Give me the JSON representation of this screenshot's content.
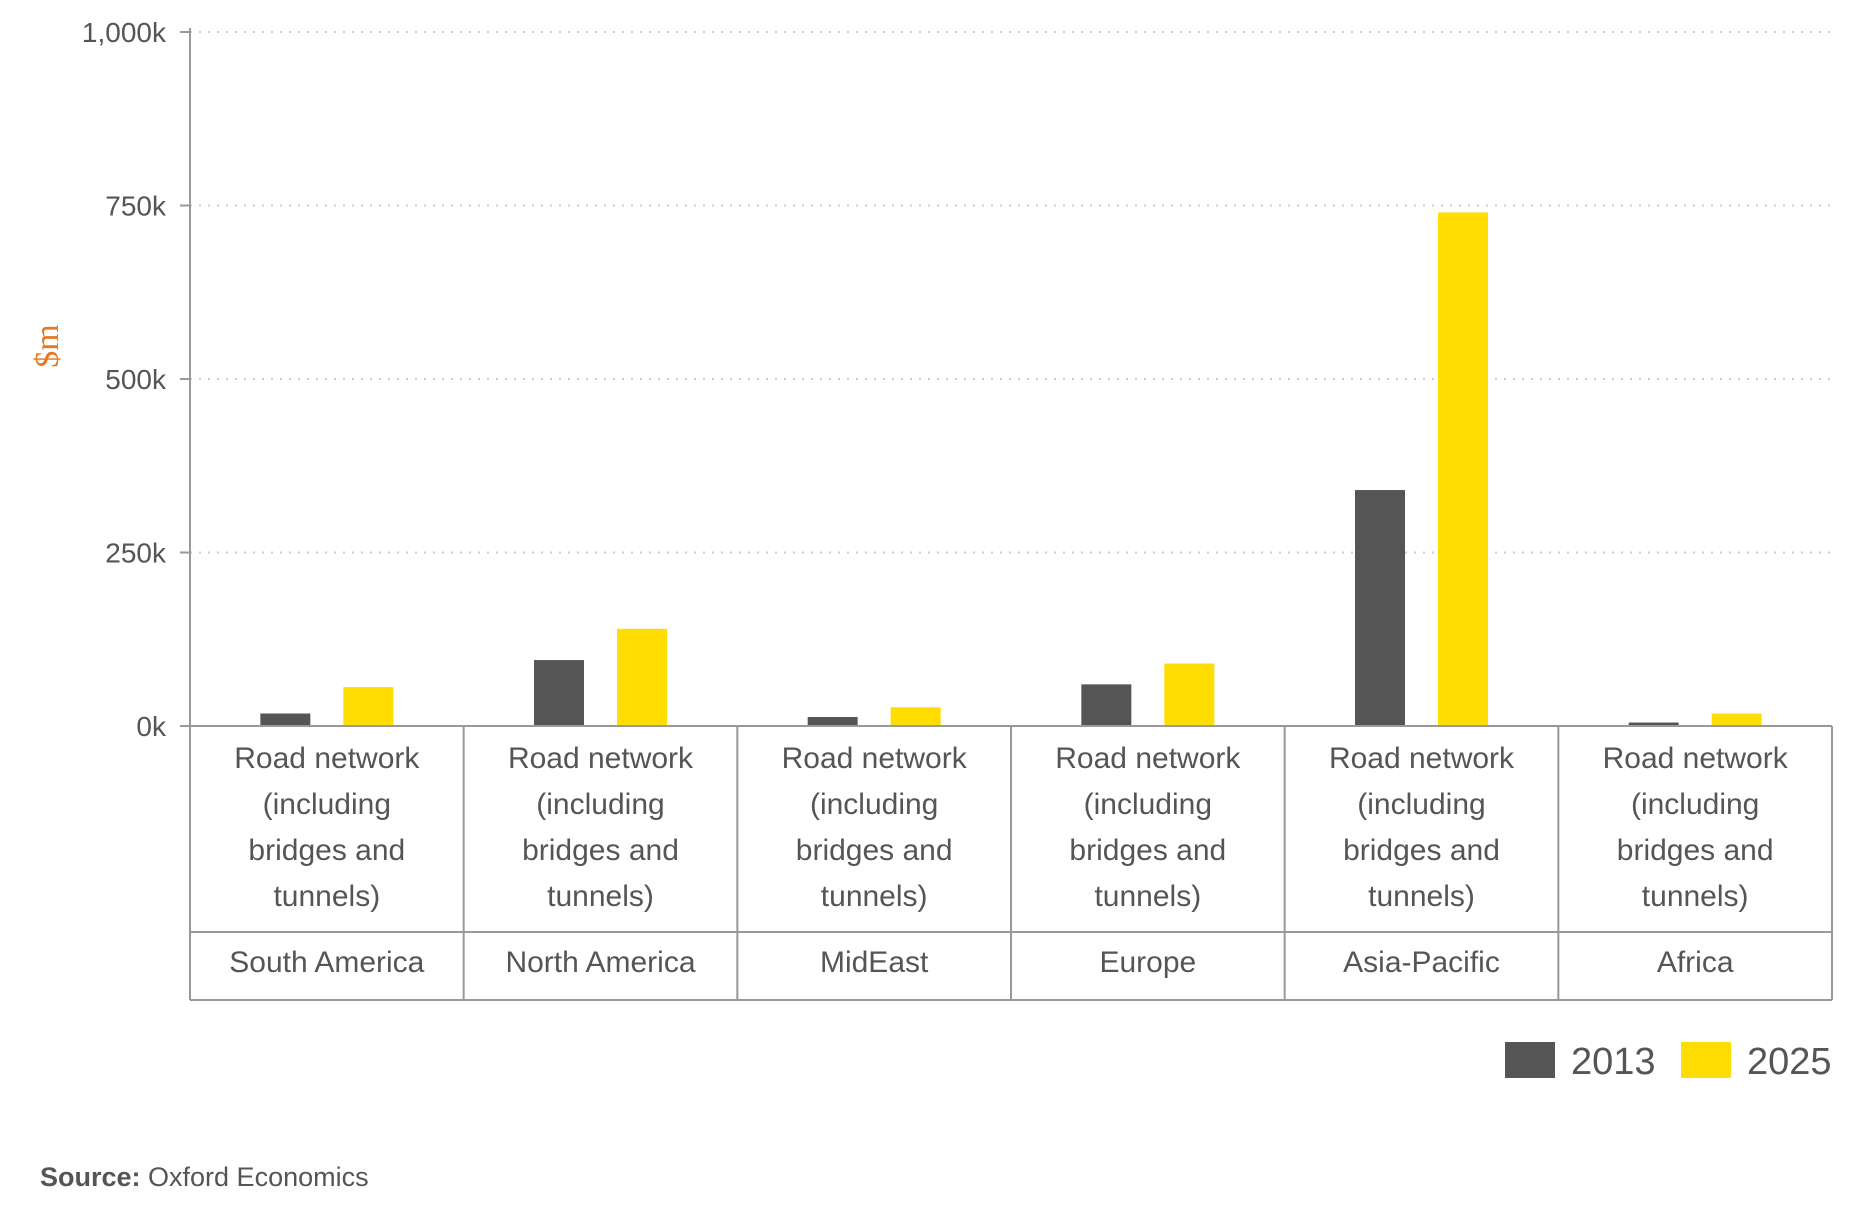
{
  "chart_data": {
    "type": "bar",
    "ylabel": "$m",
    "ylim": [
      0,
      1000000
    ],
    "yticks": [
      {
        "value": 0,
        "label": "0k"
      },
      {
        "value": 250000,
        "label": "250k"
      },
      {
        "value": 500000,
        "label": "500k"
      },
      {
        "value": 750000,
        "label": "750k"
      },
      {
        "value": 1000000,
        "label": "1,000k"
      }
    ],
    "grid": true,
    "legend_position": "bottom-right",
    "categories": [
      {
        "label": "Road network (including bridges and tunnels)",
        "group": "South America"
      },
      {
        "label": "Road network (including bridges and tunnels)",
        "group": "North America"
      },
      {
        "label": "Road network (including bridges and tunnels)",
        "group": "MidEast"
      },
      {
        "label": "Road network (including bridges and tunnels)",
        "group": "Europe"
      },
      {
        "label": "Road network (including bridges and tunnels)",
        "group": "Asia-Pacific"
      },
      {
        "label": "Road network (including bridges and tunnels)",
        "group": "Africa"
      }
    ],
    "category_label_lines": [
      "Road network",
      "(including",
      "bridges and",
      "tunnels)"
    ],
    "series": [
      {
        "name": "2013",
        "color": "#555555",
        "values": [
          18000,
          95000,
          13000,
          60000,
          340000,
          5000
        ]
      },
      {
        "name": "2025",
        "color": "#ffdd00",
        "values": [
          56000,
          140000,
          27000,
          90000,
          740000,
          18000
        ]
      }
    ]
  },
  "source": {
    "label": "Source:",
    "text": " Oxford Economics"
  },
  "colors": {
    "axis": "#999999",
    "grid": "#cccccc",
    "ylabel": "#e87722",
    "text": "#555555"
  }
}
